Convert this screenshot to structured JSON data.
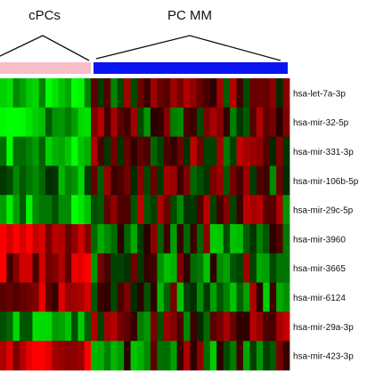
{
  "chart_data": {
    "type": "heatmap",
    "title": "",
    "groups": [
      {
        "name": "cPCs",
        "columns": 14,
        "color": "#f7bec8"
      },
      {
        "name": "PC MM",
        "columns": 30,
        "color": "#0a14f0"
      }
    ],
    "rows": [
      "hsa-let-7a-3p",
      "hsa-mir-32-5p",
      "hsa-mir-331-3p",
      "hsa-mir-106b-5p",
      "hsa-mir-29c-5p",
      "hsa-mir-3960",
      "hsa-mir-3665",
      "hsa-mir-6124",
      "hsa-mir-29a-3p",
      "hsa-mir-423-3p"
    ],
    "row_pattern": [
      {
        "cpcs": 0.8,
        "pcmm": -0.25
      },
      {
        "cpcs": 0.65,
        "pcmm": -0.2
      },
      {
        "cpcs": 0.7,
        "pcmm": -0.3
      },
      {
        "cpcs": 0.45,
        "pcmm": -0.2
      },
      {
        "cpcs": 0.6,
        "pcmm": -0.25
      },
      {
        "cpcs": -0.65,
        "pcmm": 0.35
      },
      {
        "cpcs": -0.55,
        "pcmm": 0.3
      },
      {
        "cpcs": -0.5,
        "pcmm": 0.35
      },
      {
        "cpcs": 0.55,
        "pcmm": -0.3
      },
      {
        "cpcs": -0.7,
        "pcmm": 0.35
      }
    ],
    "color_scale": {
      "low": "#ff1a1a",
      "mid": "#000000",
      "high": "#1aff1a"
    },
    "legend": "none"
  }
}
